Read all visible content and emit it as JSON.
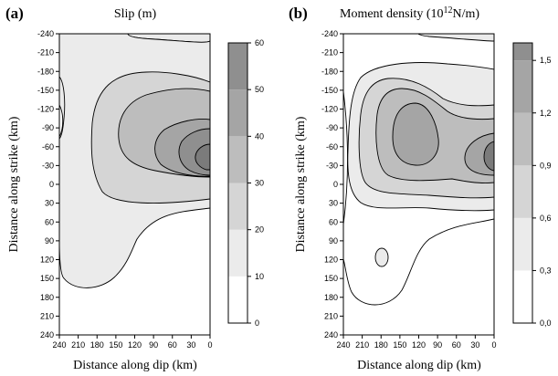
{
  "chart_data": [
    {
      "type": "heatmap",
      "panel_label": "(a)",
      "title": "Slip (m)",
      "xlabel": "Distance along dip (km)",
      "ylabel": "Distance along strike (km)",
      "xlim": [
        240,
        0
      ],
      "ylim": [
        -240,
        240
      ],
      "x_ticks": [
        "240",
        "210",
        "180",
        "150",
        "120",
        "90",
        "60",
        "30",
        "0"
      ],
      "y_ticks": [
        "-240",
        "-210",
        "-180",
        "-150",
        "-120",
        "-90",
        "-60",
        "-30",
        "0",
        "30",
        "60",
        "90",
        "120",
        "150",
        "180",
        "210",
        "240"
      ],
      "colorbar": {
        "range": [
          0,
          60
        ],
        "ticks": [
          "0",
          "10",
          "20",
          "30",
          "40",
          "50",
          "60"
        ],
        "levels": [
          0,
          10,
          20,
          30,
          40,
          50,
          60
        ]
      },
      "peak": {
        "dip_km": 20,
        "strike_km": -40,
        "value": 56
      },
      "colors": {
        "high": "#7b7b7b",
        "low": "#ffffff"
      }
    },
    {
      "type": "heatmap",
      "panel_label": "(b)",
      "title": "Moment density (10",
      "title_sup": "12",
      "title_tail": "N/m)",
      "xlabel": "Distance along dip (km)",
      "ylabel": "Distance along strike (km)",
      "xlim": [
        240,
        0
      ],
      "ylim": [
        -240,
        240
      ],
      "x_ticks": [
        "240",
        "210",
        "180",
        "150",
        "120",
        "90",
        "60",
        "30",
        "0"
      ],
      "y_ticks": [
        "-240",
        "-210",
        "-180",
        "-150",
        "-120",
        "-90",
        "-60",
        "-30",
        "0",
        "30",
        "60",
        "90",
        "120",
        "150",
        "180",
        "210",
        "240"
      ],
      "colorbar": {
        "range": [
          0,
          1.6
        ],
        "ticks": [
          "0,0",
          "0,3",
          "0,6",
          "0,9",
          "1,2",
          "1,5"
        ],
        "levels": [
          0,
          0.3,
          0.6,
          0.9,
          1.2,
          1.5,
          1.6
        ]
      },
      "peaks": [
        {
          "dip_km": 120,
          "strike_km": -85,
          "value": 1.3
        },
        {
          "dip_km": 5,
          "strike_km": -40,
          "value": 1.45
        }
      ],
      "colors": {
        "high": "#7b7b7b",
        "low": "#ffffff"
      }
    }
  ]
}
